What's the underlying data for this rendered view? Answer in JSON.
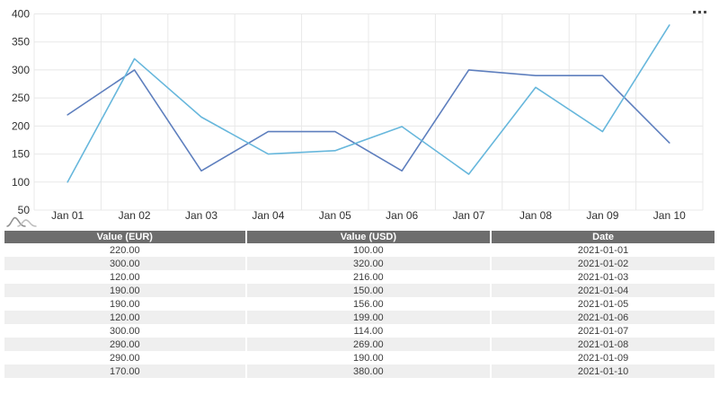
{
  "chart": {
    "icons": {
      "menu_icon": "more-options-dots",
      "logo_icon": "amcharts-logo-waves"
    },
    "colors": {
      "grid": "#e8e8e8",
      "axis_text": "#2f2f2f"
    }
  },
  "chart_data": {
    "type": "line",
    "title": "",
    "xlabel": "",
    "ylabel": "",
    "x": [
      "Jan 01",
      "Jan 02",
      "Jan 03",
      "Jan 04",
      "Jan 05",
      "Jan 06",
      "Jan 07",
      "Jan 08",
      "Jan 09",
      "Jan 10"
    ],
    "series": [
      {
        "name": "Value (EUR)",
        "color": "#5e7fbe",
        "values": [
          220,
          300,
          120,
          190,
          190,
          120,
          300,
          290,
          290,
          170
        ]
      },
      {
        "name": "Value (USD)",
        "color": "#67b7dc",
        "values": [
          100,
          320,
          216,
          150,
          156,
          199,
          114,
          269,
          190,
          380
        ]
      }
    ],
    "ylim": [
      50,
      400
    ],
    "y_ticks": [
      400,
      350,
      300,
      250,
      200,
      150,
      100,
      50
    ],
    "grid": true,
    "legend": "none"
  },
  "table": {
    "header_bg": "#6d6d6d",
    "alt_row_bg": "#efefef",
    "columns": [
      "Value (EUR)",
      "Value (USD)",
      "Date"
    ],
    "rows": [
      [
        "220.00",
        "100.00",
        "2021-01-01"
      ],
      [
        "300.00",
        "320.00",
        "2021-01-02"
      ],
      [
        "120.00",
        "216.00",
        "2021-01-03"
      ],
      [
        "190.00",
        "150.00",
        "2021-01-04"
      ],
      [
        "190.00",
        "156.00",
        "2021-01-05"
      ],
      [
        "120.00",
        "199.00",
        "2021-01-06"
      ],
      [
        "300.00",
        "114.00",
        "2021-01-07"
      ],
      [
        "290.00",
        "269.00",
        "2021-01-08"
      ],
      [
        "290.00",
        "190.00",
        "2021-01-09"
      ],
      [
        "170.00",
        "380.00",
        "2021-01-10"
      ]
    ]
  }
}
